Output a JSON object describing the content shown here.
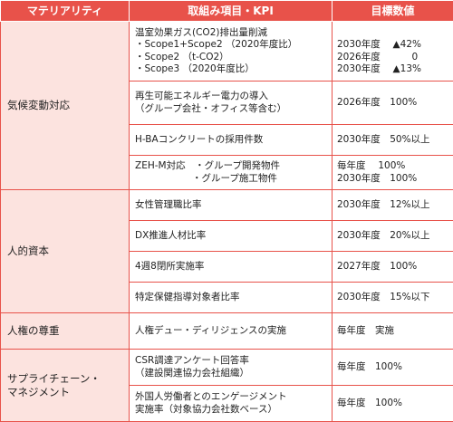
{
  "header": {
    "materiality": "マテリアリティ",
    "items": "取組み項目・KPI",
    "target": "目標数値"
  },
  "categories": [
    {
      "name": "気候変動対応",
      "rows": [
        {
          "item": "温室効果ガス(CO2)排出量削減\n・Scope1+Scope2 （2020年度比）\n・Scope2 （t-CO2）\n・Scope3 （2020年度比）",
          "target": "\n2030年度　 ▲42%\n2026年度　　　 0\n2030年度　 ▲13%"
        },
        {
          "item": "再生可能エネルギー電力の導入\n（グループ会社・オフィス等含む）",
          "target": "2026年度　100%"
        },
        {
          "item": "H-BAコンクリートの採用件数",
          "target": "2030年度　50%以上"
        },
        {
          "item": "ZEH-M対応　・グループ開発物件\n　　　　　　・グループ施工物件",
          "target": "毎年度　 100%\n2030年度　100%"
        }
      ]
    },
    {
      "name": "人的資本",
      "rows": [
        {
          "item": "女性管理職比率",
          "target": "2030年度　12%以上"
        },
        {
          "item": "DX推進人材比率",
          "target": "2030年度　20%以上"
        },
        {
          "item": "4週8閉所実施率",
          "target": "2027年度　100%"
        },
        {
          "item": "特定保健指導対象者比率",
          "target": "2030年度　15%以下"
        }
      ]
    },
    {
      "name": "人権の尊重",
      "rows": [
        {
          "item": "人権デュー・ディリジェンスの実施",
          "target": "毎年度　実施"
        }
      ]
    },
    {
      "name": "サプライチェーン・\nマネジメント",
      "rows": [
        {
          "item": "CSR調達アンケート回答率\n（建設関連協力会社組織）",
          "target": "毎年度　100%"
        },
        {
          "item": "外国人労働者とのエンゲージメント\n実施率（対象協力会社数ベース）",
          "target": "毎年度　100%"
        }
      ]
    }
  ]
}
